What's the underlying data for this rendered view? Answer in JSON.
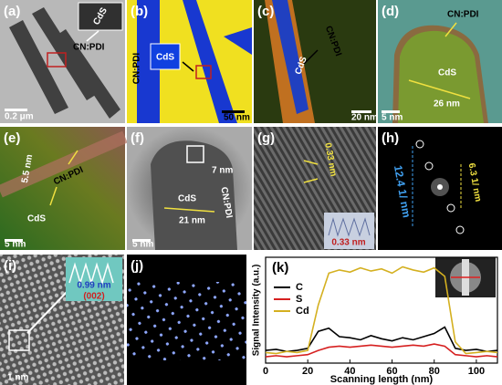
{
  "panels": [
    {
      "label": "(a)",
      "texts": [
        "CdS",
        "CN:PDI",
        "0.2 μm"
      ]
    },
    {
      "label": "(b)",
      "texts": [
        "CN:PDI",
        "CdS",
        "50 nm"
      ]
    },
    {
      "label": "(c)",
      "texts": [
        "CN:PDI",
        "CdS",
        "20 nm"
      ]
    },
    {
      "label": "(d)",
      "texts": [
        "CN:PDI",
        "CdS",
        "26 nm",
        "5 nm"
      ]
    },
    {
      "label": "(e)",
      "texts": [
        "5.5 nm",
        "CN:PDI",
        "CdS",
        "5 nm"
      ]
    },
    {
      "label": "(f)",
      "texts": [
        "7 nm",
        "CdS",
        "21 nm",
        "CN:PDI",
        "5 nm"
      ]
    },
    {
      "label": "(g)",
      "texts": [
        "0.33 nm",
        "0.33 nm"
      ]
    },
    {
      "label": "(h)",
      "texts": [
        "6.3 1/ nm",
        "12.4 1/ nm"
      ]
    },
    {
      "label": "(i)",
      "texts": [
        "0.99 nm",
        "(002)",
        "1 nm"
      ]
    },
    {
      "label": "(j)",
      "texts": []
    }
  ],
  "chart_data": {
    "type": "line",
    "label": "(k)",
    "x": [
      0,
      5,
      10,
      15,
      20,
      25,
      30,
      35,
      40,
      45,
      50,
      55,
      60,
      65,
      70,
      75,
      80,
      85,
      90,
      95,
      100,
      105,
      110
    ],
    "series": [
      {
        "name": "C",
        "color": "#000000",
        "values": [
          12,
          13,
          11,
          12,
          14,
          30,
          33,
          25,
          24,
          22,
          26,
          23,
          21,
          24,
          22,
          25,
          28,
          34,
          14,
          12,
          13,
          11,
          12
        ]
      },
      {
        "name": "S",
        "color": "#d62020",
        "values": [
          6,
          7,
          6,
          7,
          8,
          12,
          15,
          16,
          15,
          16,
          17,
          16,
          15,
          16,
          17,
          16,
          18,
          16,
          8,
          7,
          6,
          7,
          6
        ]
      },
      {
        "name": "Cd",
        "color": "#d4b020",
        "values": [
          10,
          9,
          11,
          10,
          12,
          55,
          85,
          88,
          86,
          90,
          87,
          89,
          85,
          91,
          88,
          86,
          90,
          82,
          20,
          9,
          10,
          11,
          10
        ]
      }
    ],
    "xlim": [
      0,
      110
    ],
    "xticks": [
      0,
      20,
      40,
      60,
      80,
      100
    ],
    "ylim": [
      0,
      100
    ],
    "xlabel": "Scanning length (nm)",
    "ylabel": "Signal Intensity (a.u.)",
    "legend": "upper left"
  }
}
